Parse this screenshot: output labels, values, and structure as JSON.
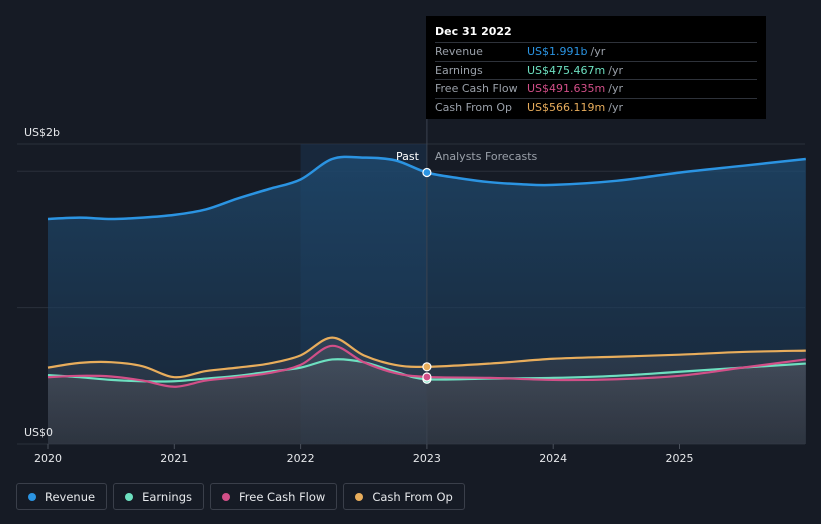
{
  "colors": {
    "background": "#161b25",
    "revenue": "#2b94e2",
    "earnings": "#6de0c0",
    "fcf": "#d24f88",
    "cfo": "#e8ad5c",
    "past_shade": "#1b3350"
  },
  "tooltip": {
    "date": "Dec 31 2022",
    "rows": [
      {
        "label": "Revenue",
        "value": "US$1.991b",
        "unit": "/yr",
        "color": "#2b94e2"
      },
      {
        "label": "Earnings",
        "value": "US$475.467m",
        "unit": "/yr",
        "color": "#6de0c0"
      },
      {
        "label": "Free Cash Flow",
        "value": "US$491.635m",
        "unit": "/yr",
        "color": "#d24f88"
      },
      {
        "label": "Cash From Op",
        "value": "US$566.119m",
        "unit": "/yr",
        "color": "#e8ad5c"
      }
    ]
  },
  "legend": {
    "items": [
      {
        "label": "Revenue",
        "color": "#2b94e2"
      },
      {
        "label": "Earnings",
        "color": "#6de0c0"
      },
      {
        "label": "Free Cash Flow",
        "color": "#d24f88"
      },
      {
        "label": "Cash From Op",
        "color": "#e8ad5c"
      }
    ]
  },
  "chart_data": {
    "type": "line",
    "title": "",
    "y_top_label": "US$2b",
    "y_bottom_label": "US$0",
    "past_label": "Past",
    "forecast_label": "Analysts Forecasts",
    "x_ticks": [
      "2020",
      "2021",
      "2022",
      "2023",
      "2024",
      "2025"
    ],
    "x_range": [
      2019.78,
      2026.0
    ],
    "y_range_b": [
      0,
      2.2
    ],
    "past_highlight_range": [
      2022.0,
      2023.0
    ],
    "divider_x": 2023.0,
    "series": [
      {
        "name": "Revenue",
        "key": "revenue",
        "points": [
          [
            2020.0,
            1.65
          ],
          [
            2020.25,
            1.66
          ],
          [
            2020.5,
            1.65
          ],
          [
            2020.75,
            1.66
          ],
          [
            2021.0,
            1.68
          ],
          [
            2021.25,
            1.72
          ],
          [
            2021.5,
            1.8
          ],
          [
            2021.75,
            1.87
          ],
          [
            2022.0,
            1.94
          ],
          [
            2022.25,
            2.09
          ],
          [
            2022.5,
            2.1
          ],
          [
            2022.75,
            2.08
          ],
          [
            2023.0,
            1.991
          ],
          [
            2023.25,
            1.95
          ],
          [
            2023.5,
            1.92
          ],
          [
            2023.75,
            1.905
          ],
          [
            2024.0,
            1.9
          ],
          [
            2024.5,
            1.93
          ],
          [
            2025.0,
            1.99
          ],
          [
            2025.5,
            2.04
          ],
          [
            2026.0,
            2.09
          ]
        ],
        "fill": true
      },
      {
        "name": "Earnings",
        "key": "earnings",
        "points": [
          [
            2020.0,
            0.505
          ],
          [
            2020.25,
            0.49
          ],
          [
            2020.5,
            0.47
          ],
          [
            2020.75,
            0.46
          ],
          [
            2021.0,
            0.46
          ],
          [
            2021.25,
            0.48
          ],
          [
            2021.5,
            0.5
          ],
          [
            2021.75,
            0.53
          ],
          [
            2022.0,
            0.56
          ],
          [
            2022.25,
            0.62
          ],
          [
            2022.5,
            0.6
          ],
          [
            2022.75,
            0.53
          ],
          [
            2023.0,
            0.475
          ],
          [
            2023.5,
            0.48
          ],
          [
            2024.0,
            0.485
          ],
          [
            2024.5,
            0.5
          ],
          [
            2025.0,
            0.53
          ],
          [
            2025.5,
            0.56
          ],
          [
            2026.0,
            0.59
          ]
        ]
      },
      {
        "name": "Free Cash Flow",
        "key": "fcf",
        "points": [
          [
            2020.0,
            0.49
          ],
          [
            2020.25,
            0.5
          ],
          [
            2020.5,
            0.495
          ],
          [
            2020.75,
            0.465
          ],
          [
            2021.0,
            0.42
          ],
          [
            2021.25,
            0.465
          ],
          [
            2021.5,
            0.49
          ],
          [
            2021.75,
            0.52
          ],
          [
            2022.0,
            0.58
          ],
          [
            2022.25,
            0.72
          ],
          [
            2022.5,
            0.6
          ],
          [
            2022.75,
            0.52
          ],
          [
            2023.0,
            0.4916
          ],
          [
            2023.5,
            0.485
          ],
          [
            2024.0,
            0.47
          ],
          [
            2024.5,
            0.475
          ],
          [
            2025.0,
            0.5
          ],
          [
            2025.5,
            0.56
          ],
          [
            2026.0,
            0.62
          ]
        ]
      },
      {
        "name": "Cash From Op",
        "key": "cfo",
        "points": [
          [
            2020.0,
            0.56
          ],
          [
            2020.25,
            0.595
          ],
          [
            2020.5,
            0.6
          ],
          [
            2020.75,
            0.57
          ],
          [
            2021.0,
            0.49
          ],
          [
            2021.25,
            0.535
          ],
          [
            2021.5,
            0.56
          ],
          [
            2021.75,
            0.59
          ],
          [
            2022.0,
            0.65
          ],
          [
            2022.25,
            0.78
          ],
          [
            2022.5,
            0.65
          ],
          [
            2022.75,
            0.58
          ],
          [
            2023.0,
            0.5661
          ],
          [
            2023.5,
            0.59
          ],
          [
            2024.0,
            0.625
          ],
          [
            2024.5,
            0.64
          ],
          [
            2025.0,
            0.655
          ],
          [
            2025.5,
            0.675
          ],
          [
            2026.0,
            0.685
          ]
        ]
      }
    ],
    "highlight_x": 2023.0
  }
}
